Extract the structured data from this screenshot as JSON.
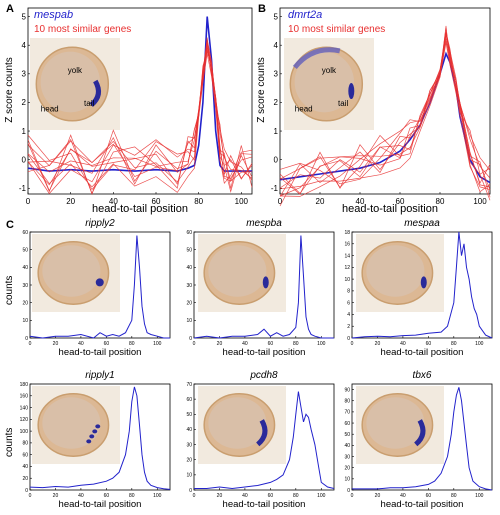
{
  "panels": [
    {
      "letter": "A",
      "gene": "mespab",
      "subtitle": "10 most similar genes",
      "ylabel": "Z score counts",
      "xlabel": "head-to-tail position",
      "inset_labels": [
        "yolk",
        "head",
        "tail"
      ]
    },
    {
      "letter": "B",
      "gene": "dmrt2a",
      "subtitle": "10 most similar genes",
      "ylabel": "Z score counts",
      "xlabel": "head-to-tail position",
      "inset_labels": [
        "yolk",
        "head",
        "tail"
      ]
    },
    {
      "letter": "C",
      "gene": "ripply2",
      "ylabel": "counts",
      "xlabel": "head-to-tail position"
    },
    {
      "gene": "mespba",
      "xlabel": "head-to-tail position"
    },
    {
      "gene": "mespaa",
      "xlabel": "head-to-tail position"
    },
    {
      "gene": "ripply1",
      "ylabel": "counts",
      "xlabel": "head-to-tail position"
    },
    {
      "gene": "pcdh8",
      "xlabel": "head-to-tail position"
    },
    {
      "gene": "tbx6",
      "xlabel": "head-to-tail position"
    }
  ],
  "colors": {
    "query": "#2222cc",
    "similar": "#e83030",
    "axis": "#000000",
    "embryo": "#e8c9a8",
    "stain": "#2a2a9a"
  },
  "chart_data": [
    {
      "type": "line",
      "panel": "A",
      "xlim": [
        0,
        105
      ],
      "ylim": [
        -1.2,
        5.3
      ],
      "xticks": [
        0,
        20,
        40,
        60,
        80,
        100
      ],
      "yticks": [
        -1,
        0,
        1,
        2,
        3,
        4,
        5
      ],
      "series": [
        {
          "name": "mespab",
          "color": "#2222cc",
          "x": [
            0,
            10,
            20,
            30,
            40,
            50,
            60,
            70,
            75,
            78,
            80,
            82,
            84,
            86,
            88,
            90,
            92,
            95,
            100,
            105
          ],
          "values": [
            -0.3,
            -0.4,
            -0.35,
            -0.4,
            -0.35,
            -0.4,
            -0.35,
            -0.4,
            -0.3,
            -0.2,
            0.5,
            2.0,
            5.0,
            3.5,
            1.0,
            -0.2,
            -0.4,
            -0.4,
            -0.4,
            -0.4
          ]
        },
        {
          "name": "10 most similar genes",
          "color": "#e83030",
          "x": [
            0,
            10,
            20,
            30,
            40,
            50,
            60,
            70,
            75,
            78,
            80,
            82,
            84,
            86,
            88,
            90,
            92,
            95,
            100,
            105
          ],
          "values": [
            0.3,
            -0.6,
            0.2,
            -0.5,
            0.4,
            -0.3,
            0.1,
            -0.4,
            0.2,
            0.5,
            1.8,
            3.0,
            4.0,
            3.2,
            2.0,
            0.5,
            -0.2,
            -0.4,
            -0.2,
            -0.3
          ]
        }
      ]
    },
    {
      "type": "line",
      "panel": "B",
      "xlim": [
        0,
        105
      ],
      "ylim": [
        -1.2,
        5.3
      ],
      "xticks": [
        0,
        20,
        40,
        60,
        80,
        100
      ],
      "yticks": [
        -1,
        0,
        1,
        2,
        3,
        4,
        5
      ],
      "series": [
        {
          "name": "dmrt2a",
          "color": "#2222cc",
          "x": [
            0,
            10,
            20,
            30,
            40,
            50,
            60,
            65,
            70,
            75,
            80,
            83,
            85,
            88,
            90,
            95,
            100,
            105
          ],
          "values": [
            -0.7,
            -0.6,
            -0.5,
            -0.4,
            -0.3,
            -0.1,
            0.3,
            0.7,
            1.2,
            2.0,
            3.0,
            3.7,
            3.4,
            2.5,
            1.5,
            0.0,
            -0.6,
            -0.8
          ]
        },
        {
          "name": "10 most similar genes",
          "color": "#e83030",
          "x": [
            0,
            10,
            20,
            30,
            40,
            50,
            60,
            65,
            70,
            75,
            80,
            83,
            85,
            88,
            90,
            95,
            100,
            105
          ],
          "values": [
            -0.9,
            -0.7,
            -0.4,
            -0.3,
            -0.1,
            0.1,
            0.4,
            0.8,
            1.3,
            2.2,
            3.2,
            4.4,
            3.6,
            2.6,
            1.8,
            0.3,
            -0.5,
            -0.7
          ]
        }
      ]
    },
    {
      "type": "line",
      "panel": "ripply2",
      "xlim": [
        0,
        110
      ],
      "ylim": [
        0,
        60
      ],
      "xticks": [
        0,
        20,
        40,
        60,
        80,
        100
      ],
      "yticks": [
        0,
        10,
        20,
        30,
        40,
        50,
        60
      ],
      "series": [
        {
          "x": [
            0,
            10,
            20,
            30,
            40,
            50,
            55,
            60,
            65,
            70,
            75,
            80,
            82,
            84,
            86,
            88,
            90,
            92,
            95,
            100,
            105,
            110
          ],
          "values": [
            1,
            0,
            1,
            1,
            2,
            0,
            3,
            1,
            2,
            1,
            3,
            10,
            30,
            58,
            40,
            18,
            8,
            3,
            2,
            1,
            0,
            0
          ]
        }
      ]
    },
    {
      "type": "line",
      "panel": "mespba",
      "xlim": [
        0,
        110
      ],
      "ylim": [
        0,
        60
      ],
      "xticks": [
        0,
        20,
        40,
        60,
        80,
        100
      ],
      "yticks": [
        0,
        10,
        20,
        30,
        40,
        50,
        60
      ],
      "series": [
        {
          "x": [
            0,
            10,
            20,
            30,
            40,
            50,
            55,
            60,
            65,
            70,
            75,
            80,
            82,
            84,
            86,
            88,
            90,
            92,
            95,
            100,
            105,
            110
          ],
          "values": [
            0,
            1,
            0,
            1,
            1,
            2,
            5,
            1,
            3,
            1,
            2,
            6,
            20,
            58,
            35,
            12,
            5,
            2,
            1,
            0,
            0,
            0
          ]
        }
      ]
    },
    {
      "type": "line",
      "panel": "mespaa",
      "xlim": [
        0,
        110
      ],
      "ylim": [
        0,
        18
      ],
      "xticks": [
        0,
        20,
        40,
        60,
        80,
        100
      ],
      "yticks": [
        0,
        2,
        4,
        6,
        8,
        10,
        12,
        14,
        16,
        18
      ],
      "series": [
        {
          "x": [
            0,
            10,
            20,
            30,
            40,
            50,
            60,
            70,
            75,
            80,
            82,
            84,
            86,
            88,
            90,
            92,
            94,
            96,
            98,
            100,
            105,
            110
          ],
          "values": [
            0,
            0.2,
            0.3,
            0.2,
            0.4,
            0.5,
            0.8,
            1.0,
            2.0,
            6.0,
            12,
            18,
            14,
            16,
            12,
            10,
            7,
            5,
            4,
            2,
            0.5,
            0
          ]
        }
      ]
    },
    {
      "type": "line",
      "panel": "ripply1",
      "xlim": [
        0,
        110
      ],
      "ylim": [
        0,
        180
      ],
      "xticks": [
        0,
        20,
        40,
        60,
        80,
        100
      ],
      "yticks": [
        0,
        20,
        40,
        60,
        80,
        100,
        120,
        140,
        160,
        180
      ],
      "series": [
        {
          "x": [
            0,
            10,
            20,
            30,
            40,
            50,
            60,
            65,
            70,
            75,
            78,
            80,
            82,
            84,
            86,
            88,
            90,
            92,
            95,
            100,
            105,
            110
          ],
          "values": [
            5,
            4,
            6,
            5,
            8,
            10,
            15,
            20,
            30,
            60,
            100,
            150,
            175,
            160,
            110,
            60,
            30,
            15,
            8,
            4,
            2,
            1
          ]
        }
      ]
    },
    {
      "type": "line",
      "panel": "pcdh8",
      "xlim": [
        0,
        110
      ],
      "ylim": [
        0,
        70
      ],
      "xticks": [
        0,
        20,
        40,
        60,
        80,
        100
      ],
      "yticks": [
        0,
        10,
        20,
        30,
        40,
        50,
        60,
        70
      ],
      "series": [
        {
          "x": [
            0,
            10,
            20,
            30,
            40,
            50,
            60,
            65,
            70,
            75,
            78,
            80,
            82,
            84,
            86,
            88,
            90,
            92,
            95,
            98,
            100,
            105,
            110
          ],
          "values": [
            1,
            1,
            2,
            1,
            2,
            3,
            5,
            7,
            10,
            20,
            35,
            50,
            65,
            55,
            45,
            50,
            48,
            40,
            30,
            15,
            5,
            2,
            1
          ]
        }
      ]
    },
    {
      "type": "line",
      "panel": "tbx6",
      "xlim": [
        0,
        110
      ],
      "ylim": [
        0,
        95
      ],
      "xticks": [
        0,
        20,
        40,
        60,
        80,
        100
      ],
      "yticks": [
        0,
        10,
        20,
        30,
        40,
        50,
        60,
        70,
        80,
        90
      ],
      "series": [
        {
          "x": [
            0,
            10,
            20,
            30,
            40,
            50,
            60,
            65,
            70,
            75,
            78,
            80,
            82,
            84,
            86,
            88,
            90,
            92,
            95,
            100,
            105,
            110
          ],
          "values": [
            1,
            1,
            1,
            2,
            2,
            3,
            5,
            8,
            15,
            30,
            50,
            70,
            85,
            92,
            80,
            60,
            40,
            20,
            8,
            3,
            1,
            0
          ]
        }
      ]
    }
  ]
}
